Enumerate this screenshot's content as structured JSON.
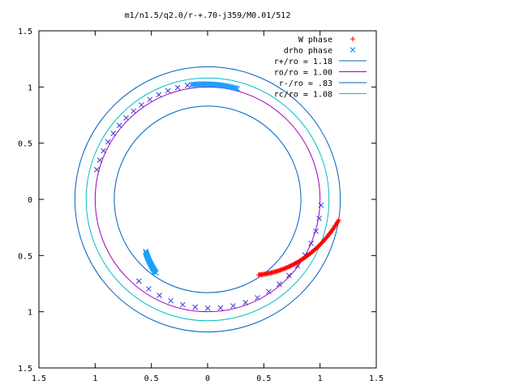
{
  "chart_data": {
    "type": "scatter",
    "title": "m1/n1.5/q2.0/r-+.70-j359/M0.01/512",
    "xlim": [
      -1.5,
      1.5
    ],
    "ylim": [
      -1.5,
      1.5
    ],
    "x_ticks": [
      "1.5",
      "1",
      "0.5",
      "0",
      "0.5",
      "1",
      "1.5"
    ],
    "x_tick_values": [
      -1.5,
      -1,
      -0.5,
      0,
      0.5,
      1,
      1.5
    ],
    "y_ticks": [
      "1.5",
      "1",
      "0.5",
      "0",
      "0.5",
      "1",
      "1.5"
    ],
    "y_tick_values": [
      1.5,
      1,
      0.5,
      0,
      -0.5,
      -1,
      -1.5
    ],
    "grid": false,
    "legend_position": "top-right",
    "series": [
      {
        "name": "W phase",
        "kind": "points",
        "marker": "+",
        "color": "#ff0000",
        "arc": {
          "r_start": 1.18,
          "r_end": 0.81,
          "theta_start": -9,
          "theta_end": -56,
          "count": 90
        }
      },
      {
        "name": "drho phase",
        "kind": "points",
        "marker": "x",
        "color": "#0080ff",
        "arc_dark": {
          "color": "#3b3bd0",
          "r_start": 1.01,
          "r_end": 0.95,
          "theta_start": -3,
          "theta_end": -130,
          "count": 20
        },
        "arc_light": {
          "color": "#1aa0ff",
          "r_start": 0.8,
          "r_end": 0.72,
          "theta_start": -125,
          "theta_end": -140,
          "count": 40
        },
        "arc_top_dark": {
          "color": "#3b3bd0",
          "r_start": 1.02,
          "r_end": 1.03,
          "theta_start": 165,
          "theta_end": 100,
          "count": 14
        },
        "arc_top_light": {
          "color": "#1aa0ff",
          "r_start": 1.03,
          "r_end": 1.02,
          "theta_start": 98,
          "theta_end": 75,
          "count": 40
        }
      },
      {
        "name": "r+/ro = 1.18",
        "kind": "circle",
        "r": 1.18,
        "color": "#0060c0"
      },
      {
        "name": "ro/ro = 1.00",
        "kind": "circle",
        "r": 1.0,
        "color": "#a000c0"
      },
      {
        "name": "r-/ro = .83",
        "kind": "circle",
        "r": 0.83,
        "color": "#0060c0"
      },
      {
        "name": "rc/ro = 1.08",
        "kind": "circle",
        "r": 1.08,
        "color": "#00c0c0"
      }
    ]
  }
}
